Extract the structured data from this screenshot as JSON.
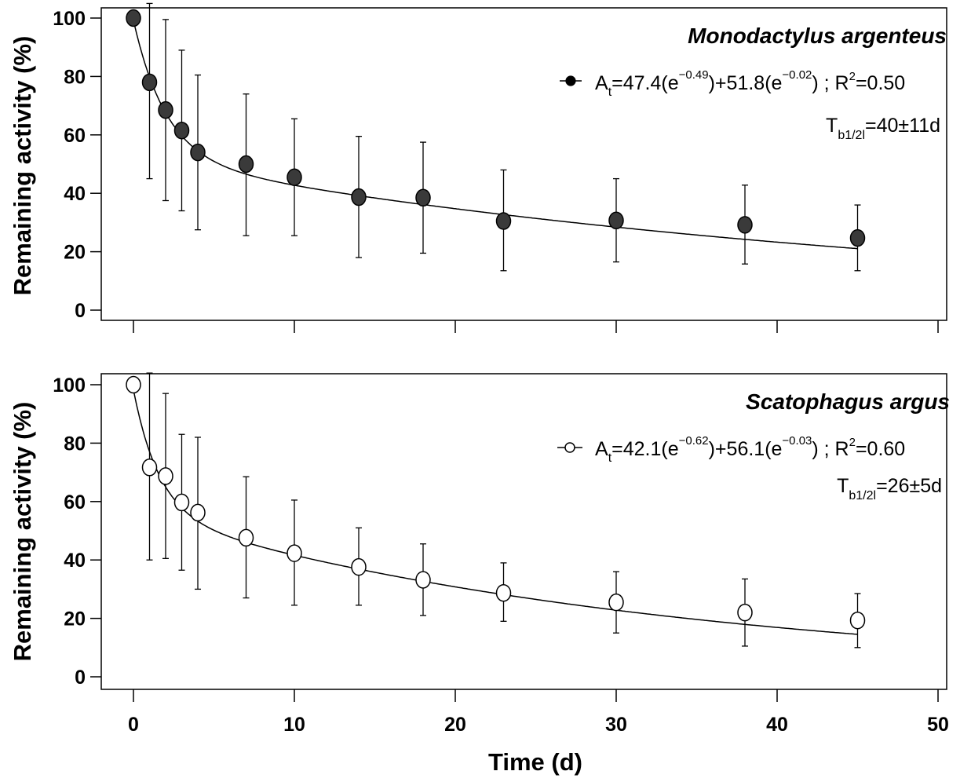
{
  "chart_data": [
    {
      "type": "scatter",
      "panel": "top",
      "species": "Monodactylus argenteus",
      "ylabel": "Remaining activity (%)",
      "xlabel": "",
      "xlim": [
        0,
        50
      ],
      "ylim": [
        0,
        100
      ],
      "xticks": [
        0,
        10,
        20,
        30,
        40,
        50
      ],
      "yticks": [
        0,
        20,
        40,
        60,
        80,
        100
      ],
      "xtick_labels_shown": false,
      "marker": "filled-circle",
      "marker_color": "#3a3a3a",
      "fit": {
        "a": 47.4,
        "k1": 0.49,
        "b": 51.8,
        "k2": 0.02
      },
      "legend": {
        "placement": "top-right",
        "eq_prefix": "A",
        "eq_sub": "t",
        "eq_p1": "=47.4(e",
        "eq_e1": "−0.49",
        "eq_p2": ")+51.8(e",
        "eq_e2": "−0.02",
        "eq_p3": ") ; R",
        "eq_r2sup": "2",
        "eq_p4": "=0.50",
        "half_T": "T",
        "half_sub": "b1/2l",
        "half_value": "=40±11d"
      },
      "x": [
        0,
        1,
        2,
        3,
        4,
        7,
        10,
        14,
        18,
        23,
        30,
        38,
        45
      ],
      "y": [
        100,
        78,
        68.5,
        61.5,
        54,
        50,
        45.5,
        38.7,
        38.5,
        30.5,
        30.7,
        29.2,
        24.7
      ],
      "err_low": [
        100,
        45,
        37.5,
        34,
        27.5,
        25.5,
        25.5,
        18,
        19.5,
        13.5,
        16.5,
        15.8,
        13.5
      ],
      "err_high": [
        100,
        105,
        99.5,
        89,
        80.5,
        74,
        65.5,
        59.5,
        57.5,
        48,
        45,
        42.8,
        36
      ]
    },
    {
      "type": "scatter",
      "panel": "bottom",
      "species": "Scatophagus argus",
      "ylabel": "Remaining activity (%)",
      "xlabel": "Time (d)",
      "xlim": [
        0,
        50
      ],
      "ylim": [
        0,
        100
      ],
      "xticks": [
        0,
        10,
        20,
        30,
        40,
        50
      ],
      "yticks": [
        0,
        20,
        40,
        60,
        80,
        100
      ],
      "xtick_labels_shown": true,
      "marker": "open-circle",
      "marker_color": "#ffffff",
      "fit": {
        "a": 42.1,
        "k1": 0.62,
        "b": 56.1,
        "k2": 0.03
      },
      "legend": {
        "placement": "top-right",
        "eq_prefix": "A",
        "eq_sub": "t",
        "eq_p1": "=42.1(e",
        "eq_e1": "−0.62",
        "eq_p2": ")+56.1(e",
        "eq_e2": "−0.03",
        "eq_p3": ") ; R",
        "eq_r2sup": "2",
        "eq_p4": "=0.60",
        "half_T": "T",
        "half_sub": "b1/2l",
        "half_value": "=26±5d"
      },
      "x": [
        0,
        1,
        2,
        3,
        4,
        7,
        10,
        14,
        18,
        23,
        30,
        38,
        45
      ],
      "y": [
        100,
        71.7,
        68.7,
        59.7,
        56.2,
        47.6,
        42.3,
        37.6,
        33.2,
        28.7,
        25.5,
        22,
        19.3
      ],
      "err_low": [
        100,
        40,
        40.5,
        36.5,
        30,
        27,
        24.5,
        24.5,
        21,
        19,
        15,
        10.5,
        10
      ],
      "err_high": [
        100,
        104,
        97,
        83,
        82,
        68.5,
        60.5,
        51,
        45.5,
        39,
        36,
        33.5,
        28.5
      ]
    }
  ]
}
